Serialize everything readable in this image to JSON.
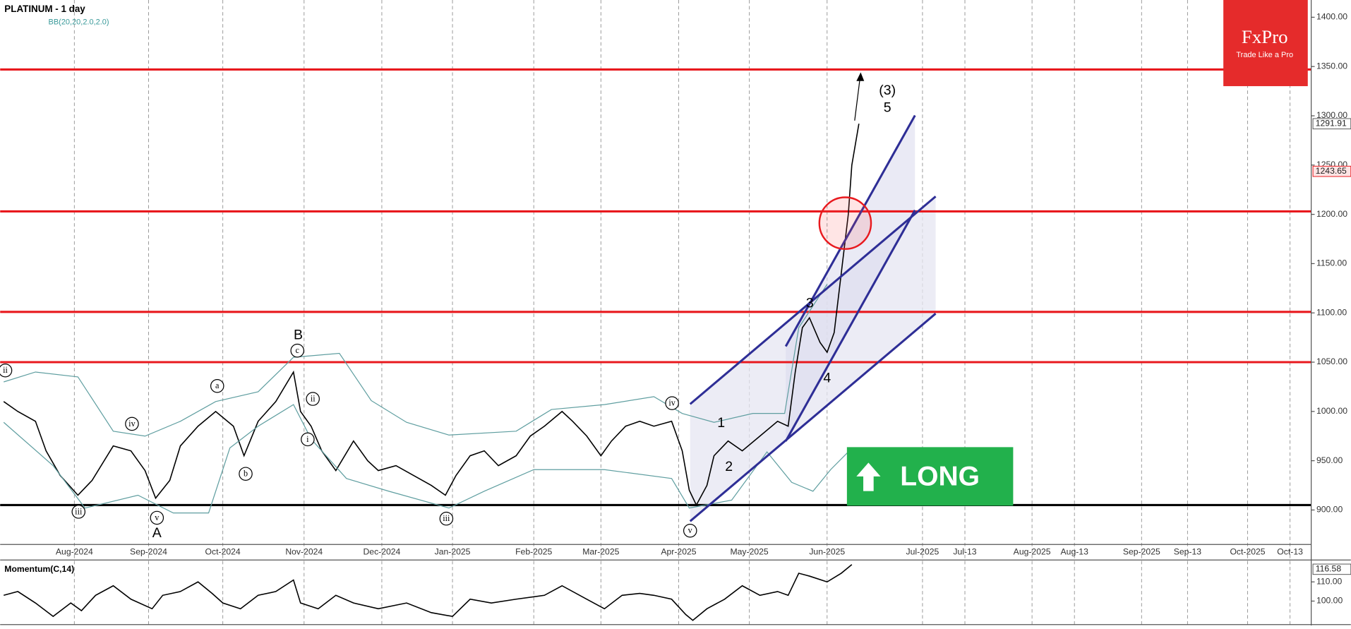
{
  "header": {
    "title": "PLATINUM - 1 day",
    "indicator": "BB(20,20,2.0,2.0)"
  },
  "chart_data": [
    {
      "type": "line",
      "x": [
        0,
        4,
        9,
        12,
        16,
        21,
        25,
        31,
        36,
        40,
        43,
        47,
        50,
        55,
        60,
        65,
        68,
        72,
        77,
        82,
        84,
        87,
        90,
        94,
        99,
        103,
        106,
        111,
        116,
        121,
        125,
        128,
        132,
        136,
        140,
        145,
        149,
        153,
        158,
        161,
        165,
        169,
        172,
        176,
        180,
        184,
        189,
        192,
        194,
        196,
        199,
        201,
        205,
        209,
        214,
        219,
        222,
        224,
        226,
        228,
        231,
        233,
        235,
        237,
        239,
        240,
        242
      ],
      "series": [
        {
          "color": "#000000",
          "values": [
            1010,
            1000,
            990,
            960,
            935,
            915,
            930,
            965,
            960,
            940,
            912,
            930,
            965,
            985,
            1000,
            985,
            955,
            990,
            1010,
            1040,
            1000,
            985,
            960,
            940,
            970,
            950,
            940,
            945,
            935,
            925,
            915,
            935,
            955,
            960,
            945,
            955,
            975,
            985,
            1000,
            990,
            975,
            955,
            970,
            985,
            990,
            985,
            990,
            960,
            920,
            905,
            925,
            955,
            970,
            960,
            975,
            990,
            985,
            1040,
            1085,
            1095,
            1070,
            1060,
            1080,
            1140,
            1200,
            1250,
            1292
          ]
        },
        {
          "color": "#5f9ea0",
          "x": [
            0,
            9,
            21,
            31,
            40,
            50,
            60,
            72,
            82,
            95,
            104,
            114,
            126,
            145,
            155,
            170,
            184,
            192,
            201,
            212,
            221,
            225,
            233
          ],
          "values": [
            1030,
            1040,
            1035,
            980,
            975,
            990,
            1010,
            1020,
            1055,
            1059,
            1011,
            989,
            976,
            980,
            1002,
            1007,
            1015,
            998,
            989,
            998,
            998,
            1085,
            1129
          ]
        },
        {
          "color": "#5f9ea0",
          "x": [
            0,
            14,
            23,
            38,
            48,
            58,
            64,
            72,
            82,
            87,
            97,
            109,
            126,
            136,
            150,
            170,
            189,
            194,
            206,
            216,
            223,
            229,
            234,
            239
          ],
          "values": [
            989,
            945,
            902,
            915,
            897,
            897,
            963,
            985,
            1007,
            972,
            932,
            919,
            902,
            919,
            941,
            941,
            932,
            902,
            910,
            959,
            928,
            919,
            941,
            959
          ]
        }
      ],
      "xlim": [
        -1,
        370
      ],
      "ylim": [
        865,
        1417.5
      ],
      "xticks": [
        {
          "value": 20,
          "label": "Aug-2024"
        },
        {
          "value": 41,
          "label": "Sep-2024"
        },
        {
          "value": 62,
          "label": "Oct-2024"
        },
        {
          "value": 85,
          "label": "Nov-2024"
        },
        {
          "value": 107,
          "label": "Dec-2024"
        },
        {
          "value": 127,
          "label": "Jan-2025"
        },
        {
          "value": 150,
          "label": "Feb-2025"
        },
        {
          "value": 169,
          "label": "Mar-2025"
        },
        {
          "value": 191,
          "label": "Apr-2025"
        },
        {
          "value": 211,
          "label": "May-2025"
        },
        {
          "value": 233,
          "label": "Jun-2025"
        },
        {
          "value": 260,
          "label": "Jul-2025"
        },
        {
          "value": 272,
          "label": "Jul-13"
        },
        {
          "value": 291,
          "label": "Aug-2025"
        },
        {
          "value": 303,
          "label": "Aug-13"
        },
        {
          "value": 322,
          "label": "Sep-2025"
        },
        {
          "value": 335,
          "label": "Sep-13"
        },
        {
          "value": 352,
          "label": "Oct-2025"
        },
        {
          "value": 364,
          "label": "Oct-13"
        }
      ],
      "yticks": [
        {
          "value": 900,
          "label": "900.00"
        },
        {
          "value": 950,
          "label": "950.00"
        },
        {
          "value": 1000,
          "label": "1000.00"
        },
        {
          "value": 1050,
          "label": "1050.00"
        },
        {
          "value": 1100,
          "label": "1100.00"
        },
        {
          "value": 1150,
          "label": "1150.00"
        },
        {
          "value": 1200,
          "label": "1200.00"
        },
        {
          "value": 1250,
          "label": "1250.00"
        },
        {
          "value": 1300,
          "label": "1300.00"
        },
        {
          "value": 1350,
          "label": "1350.00"
        },
        {
          "value": 1400,
          "label": "1400.00"
        }
      ],
      "price_markers": [
        1291.91,
        1243.65
      ],
      "resistance_levels": [
        1347,
        1203,
        1101,
        1050
      ],
      "resistance_color": "#e8191e",
      "support_level": 905,
      "grid": true,
      "annotations": [
        "ii",
        "iii",
        "iv",
        "v",
        "A",
        "a",
        "b",
        "c",
        "B",
        "ii",
        "i",
        "iii",
        "iv",
        "v",
        "1",
        "2",
        "3",
        "4",
        "(3)",
        "5"
      ]
    },
    {
      "type": "line",
      "title": "Momentum(C,14)",
      "x": [
        0,
        4,
        9,
        14,
        19,
        22,
        26,
        31,
        36,
        42,
        45,
        50,
        55,
        59,
        62,
        67,
        72,
        77,
        82,
        84,
        89,
        94,
        99,
        106,
        114,
        121,
        127,
        132,
        138,
        145,
        153,
        158,
        165,
        170,
        175,
        180,
        184,
        189,
        193,
        195,
        199,
        204,
        209,
        214,
        219,
        222,
        225,
        228,
        233,
        237,
        240
      ],
      "series": [
        {
          "color": "#000000",
          "values": [
            103,
            105,
            99,
            92,
            99,
            95,
            103,
            108,
            101,
            96,
            103,
            105,
            110,
            104,
            99,
            96,
            103,
            105,
            111,
            99,
            96,
            103,
            99,
            96,
            99,
            94,
            92,
            101,
            99,
            101,
            103,
            108,
            101,
            96,
            103,
            104,
            103,
            101,
            93,
            90,
            96,
            101,
            108,
            103,
            105,
            103,
            114.5,
            113,
            110,
            114.5,
            119
          ]
        }
      ],
      "xlim": [
        -1,
        370
      ],
      "ylim": [
        87.3,
        121.4
      ],
      "yticks": [
        {
          "value": 100,
          "label": "100.00"
        },
        {
          "value": 110,
          "label": "110.00"
        }
      ],
      "last_value": 116.58
    }
  ],
  "logo": {
    "brand": "FxPro",
    "tagline": "Trade Like a Pro"
  },
  "signal": {
    "label": "LONG"
  }
}
